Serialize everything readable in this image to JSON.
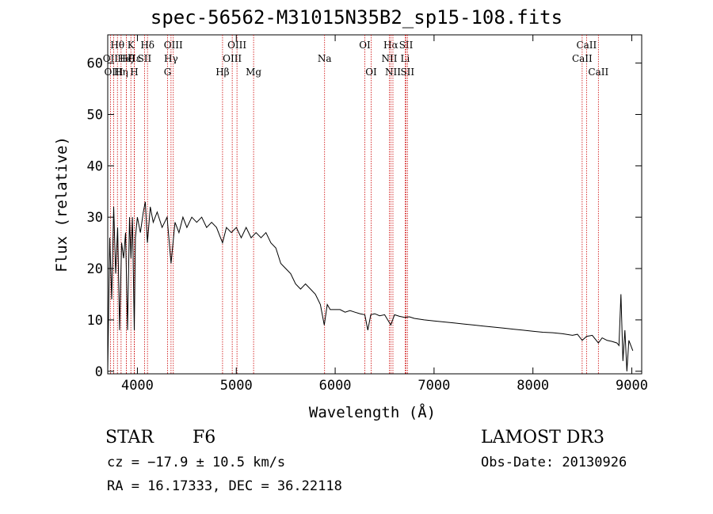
{
  "title": "spec-56562-M31015N35B2_sp15-108.fits",
  "info": {
    "object_class": "STAR",
    "subclass": "F6",
    "survey": "LAMOST DR3",
    "cz": "cz = −17.9 ± 10.5 km/s",
    "obs_date": "Obs-Date: 20130926",
    "ra_dec": "RA =  16.17333, DEC =  36.22118"
  },
  "colors": {
    "line_marker": "#cc0000",
    "spectrum": "#000000",
    "axes": "#000000"
  },
  "chart_data": {
    "type": "line",
    "title": "spec-56562-M31015N35B2_sp15-108.fits",
    "xlabel": "Wavelength (Å)",
    "ylabel": "Flux (relative)",
    "xlim": [
      3700,
      9100
    ],
    "ylim": [
      -0.5,
      65.5
    ],
    "xticks": [
      4000,
      5000,
      6000,
      7000,
      8000,
      9000
    ],
    "yticks": [
      0,
      10,
      20,
      30,
      40,
      50,
      60
    ],
    "spectrum": {
      "name": "flux",
      "x": [
        3700,
        3720,
        3740,
        3760,
        3780,
        3800,
        3820,
        3840,
        3860,
        3880,
        3900,
        3920,
        3935,
        3950,
        3968,
        3980,
        4000,
        4030,
        4060,
        4080,
        4101,
        4130,
        4160,
        4200,
        4250,
        4300,
        4340,
        4380,
        4420,
        4460,
        4500,
        4550,
        4600,
        4650,
        4700,
        4750,
        4800,
        4861,
        4900,
        4950,
        5000,
        5050,
        5100,
        5150,
        5200,
        5250,
        5300,
        5350,
        5400,
        5450,
        5500,
        5550,
        5600,
        5650,
        5700,
        5750,
        5800,
        5850,
        5890,
        5920,
        5950,
        6000,
        6050,
        6100,
        6150,
        6200,
        6250,
        6300,
        6330,
        6360,
        6400,
        6450,
        6500,
        6563,
        6600,
        6650,
        6700,
        6750,
        6800,
        6900,
        7000,
        7100,
        7200,
        7300,
        7400,
        7500,
        7600,
        7700,
        7800,
        7900,
        8000,
        8100,
        8200,
        8300,
        8400,
        8450,
        8498,
        8542,
        8600,
        8662,
        8700,
        8750,
        8800,
        8850,
        8870,
        8890,
        8910,
        8930,
        8950,
        8970,
        8990,
        9010
      ],
      "y": [
        0,
        26,
        14,
        32,
        19,
        28,
        8,
        25,
        22,
        27,
        8,
        30,
        22,
        30,
        8,
        26,
        30,
        27,
        31,
        33,
        25,
        32,
        29,
        31,
        28,
        30,
        21,
        29,
        27,
        30,
        28,
        30,
        29,
        30,
        28,
        29,
        28,
        25,
        28,
        27,
        28,
        26,
        28,
        26,
        27,
        26,
        27,
        25,
        24,
        21,
        20,
        19,
        17,
        16,
        17,
        16,
        15,
        13,
        9,
        13,
        12,
        12,
        12,
        11.5,
        11.8,
        11.5,
        11.2,
        11,
        8,
        11,
        11.2,
        10.8,
        11,
        9,
        11,
        10.7,
        10.5,
        10.6,
        10.3,
        10,
        9.8,
        9.6,
        9.4,
        9.2,
        9,
        8.8,
        8.6,
        8.4,
        8.2,
        8,
        7.8,
        7.6,
        7.5,
        7.3,
        7,
        7.2,
        6,
        6.8,
        7,
        5.5,
        6.5,
        6,
        5.8,
        5.5,
        5,
        15,
        2,
        8,
        0,
        6,
        5,
        4
      ]
    },
    "lines": [
      {
        "label": "Hθ",
        "x": 3798,
        "row": 0
      },
      {
        "label": "OII",
        "x": 3727,
        "row": 1
      },
      {
        "label": "OIII",
        "x": 3760,
        "row": 2
      },
      {
        "label": "Hη",
        "x": 3835,
        "row": 2
      },
      {
        "label": "Hζ",
        "x": 3889,
        "row": 1
      },
      {
        "label": "HeI",
        "x": 3889,
        "row": 1
      },
      {
        "label": "K",
        "x": 3934,
        "row": 0
      },
      {
        "label": "Hε",
        "x": 3970,
        "row": 1
      },
      {
        "label": "H",
        "x": 3968,
        "row": 2
      },
      {
        "label": "SII",
        "x": 4072,
        "row": 1
      },
      {
        "label": "Hδ",
        "x": 4102,
        "row": 0
      },
      {
        "label": "OIII",
        "x": 4363,
        "row": 0
      },
      {
        "label": "Hγ",
        "x": 4340,
        "row": 1
      },
      {
        "label": "G",
        "x": 4305,
        "row": 2
      },
      {
        "label": "Hβ",
        "x": 4861,
        "row": 2
      },
      {
        "label": "OIII",
        "x": 5007,
        "row": 0
      },
      {
        "label": "OIII",
        "x": 4959,
        "row": 1
      },
      {
        "label": "Mg",
        "x": 5175,
        "row": 2
      },
      {
        "label": "Na",
        "x": 5893,
        "row": 1
      },
      {
        "label": "OI",
        "x": 6300,
        "row": 0
      },
      {
        "label": "OI",
        "x": 6364,
        "row": 2
      },
      {
        "label": "Hα",
        "x": 6563,
        "row": 0
      },
      {
        "label": "NII",
        "x": 6548,
        "row": 1
      },
      {
        "label": "NII",
        "x": 6584,
        "row": 2
      },
      {
        "label": "SII",
        "x": 6717,
        "row": 0
      },
      {
        "label": "Li",
        "x": 6708,
        "row": 1
      },
      {
        "label": "SII",
        "x": 6731,
        "row": 2
      },
      {
        "label": "CaII",
        "x": 8542,
        "row": 0
      },
      {
        "label": "CaII",
        "x": 8498,
        "row": 1
      },
      {
        "label": "CaII",
        "x": 8662,
        "row": 2
      }
    ]
  }
}
